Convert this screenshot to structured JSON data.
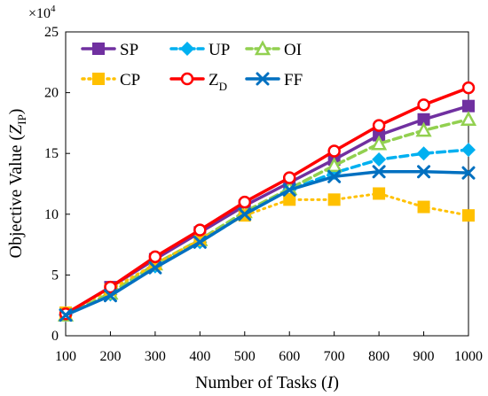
{
  "chart_data": {
    "type": "line",
    "xlabel": "Number of Tasks",
    "xlabel_var": "I",
    "ylabel": "Objective Value",
    "ylabel_var": "Z",
    "ylabel_sub": "IP",
    "y_multiplier": "×10",
    "y_multiplier_exp": "4",
    "x": [
      100,
      200,
      300,
      400,
      500,
      600,
      700,
      800,
      900,
      1000
    ],
    "xlim": [
      100,
      1000
    ],
    "ylim": [
      0,
      25
    ],
    "x_ticks": [
      "100",
      "200",
      "300",
      "400",
      "500",
      "600",
      "700",
      "800",
      "900",
      "1000"
    ],
    "y_ticks": [
      "0",
      "5",
      "10",
      "15",
      "20",
      "25"
    ],
    "legend_position": "top-left",
    "series": [
      {
        "name": "SP",
        "color": "#7030A0",
        "marker": "square",
        "dash": "solid",
        "values": [
          1.8,
          4.0,
          6.3,
          8.5,
          10.7,
          12.6,
          14.5,
          16.5,
          17.8,
          18.9
        ]
      },
      {
        "name": "UP",
        "color": "#00B0F0",
        "marker": "diamond",
        "dash": "dashed",
        "values": [
          1.7,
          3.4,
          5.7,
          7.7,
          10.0,
          12.0,
          13.4,
          14.5,
          15.0,
          15.3
        ]
      },
      {
        "name": "OI",
        "color": "#92D050",
        "marker": "triangle",
        "dash": "dashed",
        "values": [
          1.7,
          3.5,
          5.9,
          7.9,
          10.2,
          12.1,
          14.0,
          15.8,
          16.9,
          17.8
        ]
      },
      {
        "name": "CP",
        "color": "#FFC000",
        "marker": "square",
        "dash": "dotted",
        "values": [
          1.9,
          3.8,
          5.9,
          7.9,
          9.9,
          11.2,
          11.2,
          11.7,
          10.6,
          9.9
        ]
      },
      {
        "name": "Z",
        "name_sub": "D",
        "color": "#FF0000",
        "marker": "circle",
        "dash": "solid",
        "values": [
          1.8,
          4.0,
          6.5,
          8.7,
          11.0,
          13.0,
          15.2,
          17.3,
          19.0,
          20.4
        ]
      },
      {
        "name": "FF",
        "color": "#0070C0",
        "marker": "x",
        "dash": "solid",
        "values": [
          1.7,
          3.3,
          5.6,
          7.7,
          10.0,
          12.0,
          13.1,
          13.5,
          13.5,
          13.4
        ]
      }
    ]
  }
}
